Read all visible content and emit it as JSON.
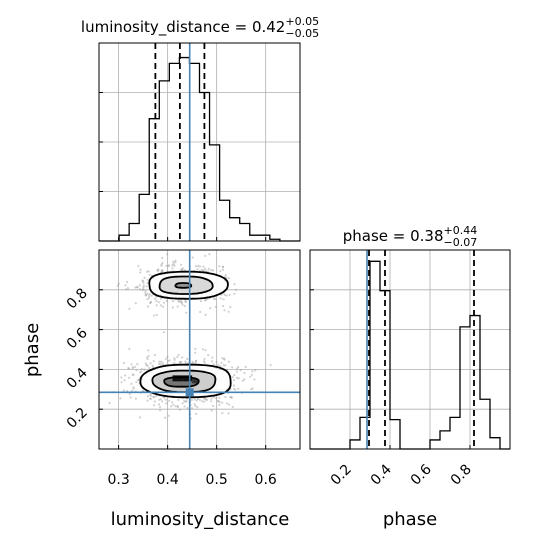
{
  "chart_data": {
    "type": "corner",
    "parameters": [
      "luminosity_distance",
      "phase"
    ],
    "truth": {
      "luminosity_distance": 0.445,
      "phase": 0.285
    },
    "colors": {
      "truth": "#4682b4",
      "hist": "#000000",
      "grid": "#b0b0b0"
    },
    "grid": true,
    "titles": [
      {
        "param": "luminosity_distance",
        "prefix": "luminosity_distance = ",
        "median": "0.42",
        "plus": "+0.05",
        "minus": "−0.05"
      },
      {
        "param": "phase",
        "prefix": "phase = ",
        "median": "0.38",
        "plus": "+0.44",
        "minus": "−0.07"
      }
    ],
    "axis_labels": {
      "x": [
        "luminosity_distance",
        "phase"
      ],
      "y": [
        "phase"
      ]
    },
    "luminosity_distance": {
      "range": [
        0.26,
        0.67
      ],
      "ticks": [
        0.3,
        0.4,
        0.5,
        0.6
      ],
      "tick_labels": [
        "0.3",
        "0.4",
        "0.5",
        "0.6"
      ],
      "quantiles": [
        0.375,
        0.425,
        0.475
      ],
      "hist_edges": [
        0.26,
        0.2805,
        0.301,
        0.3215,
        0.342,
        0.3625,
        0.383,
        0.4035,
        0.424,
        0.4445,
        0.465,
        0.4855,
        0.506,
        0.5265,
        0.547,
        0.5675,
        0.588,
        0.6085,
        0.629,
        0.6495,
        0.67
      ],
      "hist_counts": [
        0,
        0,
        10,
        30,
        80,
        210,
        275,
        305,
        315,
        305,
        255,
        165,
        70,
        40,
        30,
        10,
        10,
        3,
        0,
        0
      ],
      "hist_ylim": [
        0,
        340
      ]
    },
    "phase": {
      "range": [
        0.0,
        1.0
      ],
      "ticks": [
        0.2,
        0.4,
        0.6,
        0.8
      ],
      "tick_labels": [
        "0.2",
        "0.4",
        "0.6",
        "0.8"
      ],
      "quantiles": [
        0.295,
        0.375,
        0.82
      ],
      "hist_edges": [
        0.0,
        0.05,
        0.1,
        0.15,
        0.2,
        0.25,
        0.3,
        0.35,
        0.4,
        0.45,
        0.5,
        0.55,
        0.6,
        0.65,
        0.7,
        0.75,
        0.8,
        0.85,
        0.9,
        0.95,
        1.0
      ],
      "hist_counts": [
        0,
        0,
        0,
        0,
        20,
        70,
        415,
        350,
        65,
        0,
        0,
        0,
        20,
        40,
        70,
        270,
        295,
        110,
        25,
        0
      ],
      "hist_ylim": [
        0,
        440
      ]
    },
    "joint": {
      "x_param": "luminosity_distance",
      "y_param": "phase",
      "modes": [
        {
          "cx": 0.43,
          "cy": 0.82,
          "sx": 0.038,
          "sy": 0.042,
          "weight": 0.38
        },
        {
          "cx": 0.43,
          "cy": 0.335,
          "sx": 0.042,
          "sy": 0.046,
          "weight": 0.62
        }
      ],
      "contours": [
        {
          "cx": 0.432,
          "cy": 0.822,
          "rx": 0.016,
          "ry": 0.012
        },
        {
          "cx": 0.436,
          "cy": 0.823,
          "rx": 0.054,
          "ry": 0.044
        },
        {
          "cx": 0.44,
          "cy": 0.823,
          "rx": 0.08,
          "ry": 0.068
        },
        {
          "cx": 0.428,
          "cy": 0.337,
          "rx": 0.035,
          "ry": 0.024
        },
        {
          "cx": 0.435,
          "cy": 0.34,
          "rx": 0.064,
          "ry": 0.054
        },
        {
          "cx": 0.44,
          "cy": 0.342,
          "rx": 0.092,
          "ry": 0.082
        }
      ],
      "dense_cells": [
        {
          "x": 0.41,
          "y": 0.34,
          "w": 0.02,
          "h": 0.03
        },
        {
          "x": 0.43,
          "y": 0.34,
          "w": 0.02,
          "h": 0.03
        },
        {
          "x": 0.45,
          "y": 0.33,
          "w": 0.012,
          "h": 0.025
        }
      ]
    }
  }
}
